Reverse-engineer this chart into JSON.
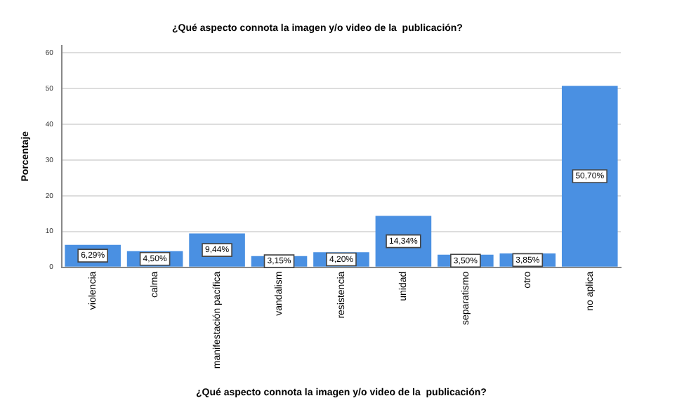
{
  "chart_data": {
    "type": "bar",
    "title": "¿Qué aspecto connota la imagen y/o video de la  publicación?",
    "xlabel": "¿Qué aspecto connota la imagen y/o video de la  publicación?",
    "ylabel": "Porcentaje",
    "categories": [
      "violencia",
      "calma",
      "manifestación pacífica",
      "vandalism",
      "resistencia",
      "unidad",
      "separatismo",
      "otro",
      "no aplica"
    ],
    "values": [
      6.29,
      4.5,
      9.44,
      3.15,
      4.2,
      14.34,
      3.5,
      3.85,
      50.7
    ],
    "value_labels": [
      "6,29%",
      "4,50%",
      "9,44%",
      "3,15%",
      "4,20%",
      "14,34%",
      "3,50%",
      "3,85%",
      "50,70%"
    ],
    "color": "#4a90e2",
    "ylim": [
      0,
      62
    ],
    "yticks": [
      0,
      10,
      20,
      30,
      40,
      50,
      60
    ],
    "grid": "y",
    "legend": false
  }
}
